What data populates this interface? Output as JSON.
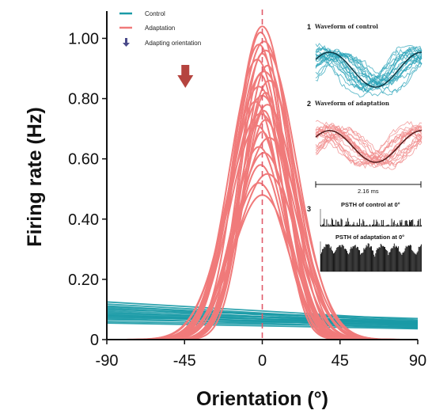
{
  "chart_data": {
    "type": "line",
    "xlabel": "Orientation (°)",
    "ylabel": "Firing rate (Hz)",
    "xlim": [
      -90,
      90
    ],
    "ylim": [
      0,
      1.08
    ],
    "x_ticks": [
      -90,
      -45,
      0,
      45,
      90
    ],
    "x_tick_labels": [
      "-90",
      "-45",
      "0",
      "45",
      "90"
    ],
    "y_ticks": [
      0,
      0.2,
      0.4,
      0.6,
      0.8,
      1.0
    ],
    "y_tick_labels": [
      "0",
      "0.20",
      "0.40",
      "0.60",
      "0.80",
      "1.00"
    ],
    "adapting_orientation_marker_x": -45,
    "reference_line_x": 0,
    "legend": {
      "placement": "top-left",
      "entries": [
        {
          "label": "Control",
          "type": "line",
          "color": "#1a9aa6"
        },
        {
          "label": "Adaptation",
          "type": "line",
          "color": "#f07a7a"
        },
        {
          "label": "Adapting orientation",
          "type": "arrow",
          "color": "#b03a3a"
        }
      ]
    },
    "series": [
      {
        "name": "Control",
        "color": "#1a9aa6",
        "kind": "linear",
        "curves": [
          {
            "y_at_-90": 0.125,
            "y_at_90": 0.065
          },
          {
            "y_at_-90": 0.118,
            "y_at_90": 0.058
          },
          {
            "y_at_-90": 0.112,
            "y_at_90": 0.052
          },
          {
            "y_at_-90": 0.108,
            "y_at_90": 0.062
          },
          {
            "y_at_-90": 0.104,
            "y_at_90": 0.048
          },
          {
            "y_at_-90": 0.1,
            "y_at_90": 0.07
          },
          {
            "y_at_-90": 0.096,
            "y_at_90": 0.056
          },
          {
            "y_at_-90": 0.092,
            "y_at_90": 0.044
          },
          {
            "y_at_-90": 0.088,
            "y_at_90": 0.06
          },
          {
            "y_at_-90": 0.085,
            "y_at_90": 0.052
          },
          {
            "y_at_-90": 0.082,
            "y_at_90": 0.04
          },
          {
            "y_at_-90": 0.079,
            "y_at_90": 0.058
          },
          {
            "y_at_-90": 0.076,
            "y_at_90": 0.046
          },
          {
            "y_at_-90": 0.073,
            "y_at_90": 0.054
          },
          {
            "y_at_-90": 0.07,
            "y_at_90": 0.038
          },
          {
            "y_at_-90": 0.066,
            "y_at_90": 0.05
          },
          {
            "y_at_-90": 0.06,
            "y_at_90": 0.042
          },
          {
            "y_at_-90": 0.055,
            "y_at_90": 0.036
          }
        ]
      },
      {
        "name": "Adaptation",
        "color": "#f07a7a",
        "kind": "gaussian",
        "curves": [
          {
            "peak": 1.04,
            "center": 0,
            "sigma": 16
          },
          {
            "peak": 1.02,
            "center": -1,
            "sigma": 14
          },
          {
            "peak": 0.99,
            "center": 1,
            "sigma": 17
          },
          {
            "peak": 0.98,
            "center": -2,
            "sigma": 15
          },
          {
            "peak": 0.96,
            "center": 2,
            "sigma": 18
          },
          {
            "peak": 0.95,
            "center": 0,
            "sigma": 13
          },
          {
            "peak": 0.93,
            "center": -3,
            "sigma": 16
          },
          {
            "peak": 0.91,
            "center": 3,
            "sigma": 14
          },
          {
            "peak": 0.89,
            "center": 1,
            "sigma": 19
          },
          {
            "peak": 0.88,
            "center": -1,
            "sigma": 12
          },
          {
            "peak": 0.86,
            "center": 4,
            "sigma": 16
          },
          {
            "peak": 0.84,
            "center": -2,
            "sigma": 17
          },
          {
            "peak": 0.82,
            "center": 2,
            "sigma": 13
          },
          {
            "peak": 0.81,
            "center": 0,
            "sigma": 18
          },
          {
            "peak": 0.79,
            "center": -4,
            "sigma": 15
          },
          {
            "peak": 0.78,
            "center": 3,
            "sigma": 17
          },
          {
            "peak": 0.76,
            "center": 1,
            "sigma": 12
          },
          {
            "peak": 0.75,
            "center": -1,
            "sigma": 19
          },
          {
            "peak": 0.73,
            "center": 2,
            "sigma": 14
          },
          {
            "peak": 0.71,
            "center": -3,
            "sigma": 16
          },
          {
            "peak": 0.69,
            "center": 0,
            "sigma": 13
          },
          {
            "peak": 0.67,
            "center": 4,
            "sigma": 18
          },
          {
            "peak": 0.64,
            "center": -2,
            "sigma": 15
          },
          {
            "peak": 0.62,
            "center": 1,
            "sigma": 17
          },
          {
            "peak": 0.58,
            "center": -1,
            "sigma": 14
          },
          {
            "peak": 0.55,
            "center": 3,
            "sigma": 18
          },
          {
            "peak": 0.52,
            "center": -2,
            "sigma": 16
          },
          {
            "peak": 0.48,
            "center": 0,
            "sigma": 17
          }
        ]
      }
    ]
  },
  "inset": {
    "panel1_number": "1",
    "panel1_title": "Waveform of control",
    "panel2_number": "2",
    "panel2_title": "Waveform of adaptation",
    "scale_label": "2.16 ms",
    "panel3_number": "3",
    "psth_control_title": "PSTH of control at 0°",
    "psth_adaptation_title": "PSTH of adaptation at 0°"
  }
}
